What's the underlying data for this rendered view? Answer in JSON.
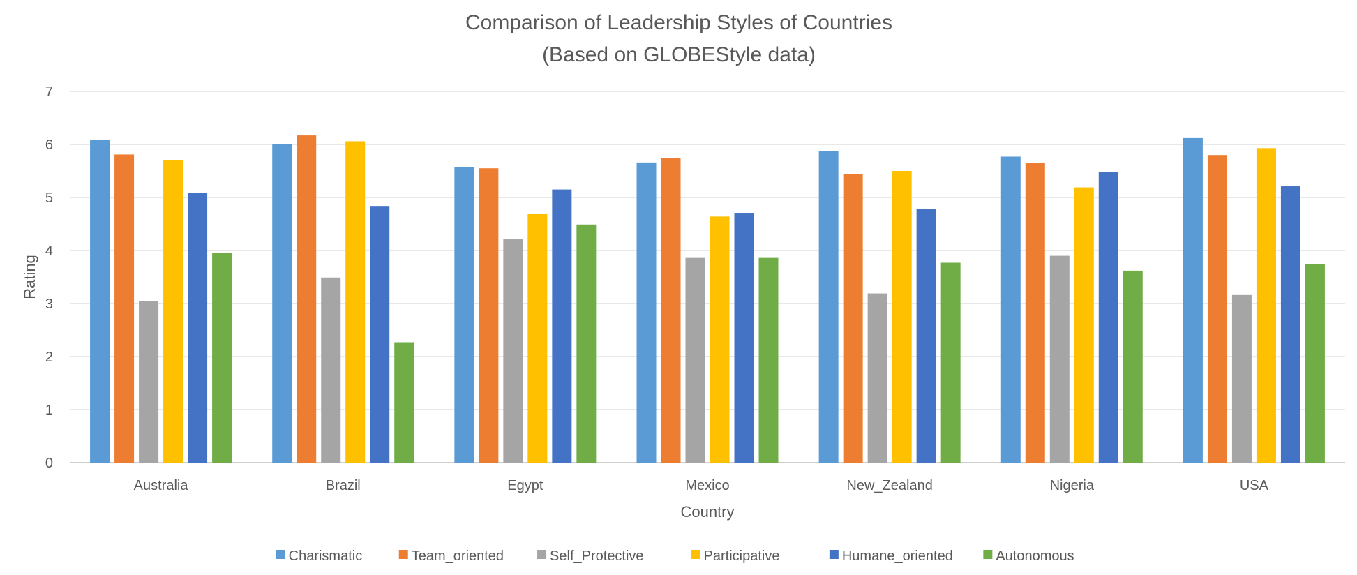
{
  "chart_data": {
    "type": "bar",
    "title": "Comparison of Leadership Styles of Countries",
    "subtitle": "(Based on GLOBEStyle data)",
    "xlabel": "Country",
    "ylabel": "Rating",
    "ylim": [
      0,
      7
    ],
    "yticks": [
      0,
      1,
      2,
      3,
      4,
      5,
      6,
      7
    ],
    "grid": true,
    "legend_position": "bottom",
    "categories": [
      "Australia",
      "Brazil",
      "Egypt",
      "Mexico",
      "New_Zealand",
      "Nigeria",
      "USA"
    ],
    "series": [
      {
        "name": "Charismatic",
        "color": "#5B9BD5",
        "values": [
          6.09,
          6.01,
          5.57,
          5.66,
          5.87,
          5.77,
          6.12
        ]
      },
      {
        "name": "Team_oriented",
        "color": "#ED7D31",
        "values": [
          5.81,
          6.17,
          5.55,
          5.75,
          5.44,
          5.65,
          5.8
        ]
      },
      {
        "name": "Self_Protective",
        "color": "#A5A5A5",
        "values": [
          3.05,
          3.49,
          4.21,
          3.86,
          3.19,
          3.9,
          3.16
        ]
      },
      {
        "name": "Participative",
        "color": "#FFC000",
        "values": [
          5.71,
          6.06,
          4.69,
          4.64,
          5.5,
          5.19,
          5.93
        ]
      },
      {
        "name": "Humane_oriented",
        "color": "#4472C4",
        "values": [
          5.09,
          4.84,
          5.15,
          4.71,
          4.78,
          5.48,
          5.21
        ]
      },
      {
        "name": "Autonomous",
        "color": "#70AD47",
        "values": [
          3.95,
          2.27,
          4.49,
          3.86,
          3.77,
          3.62,
          3.75
        ]
      }
    ]
  }
}
